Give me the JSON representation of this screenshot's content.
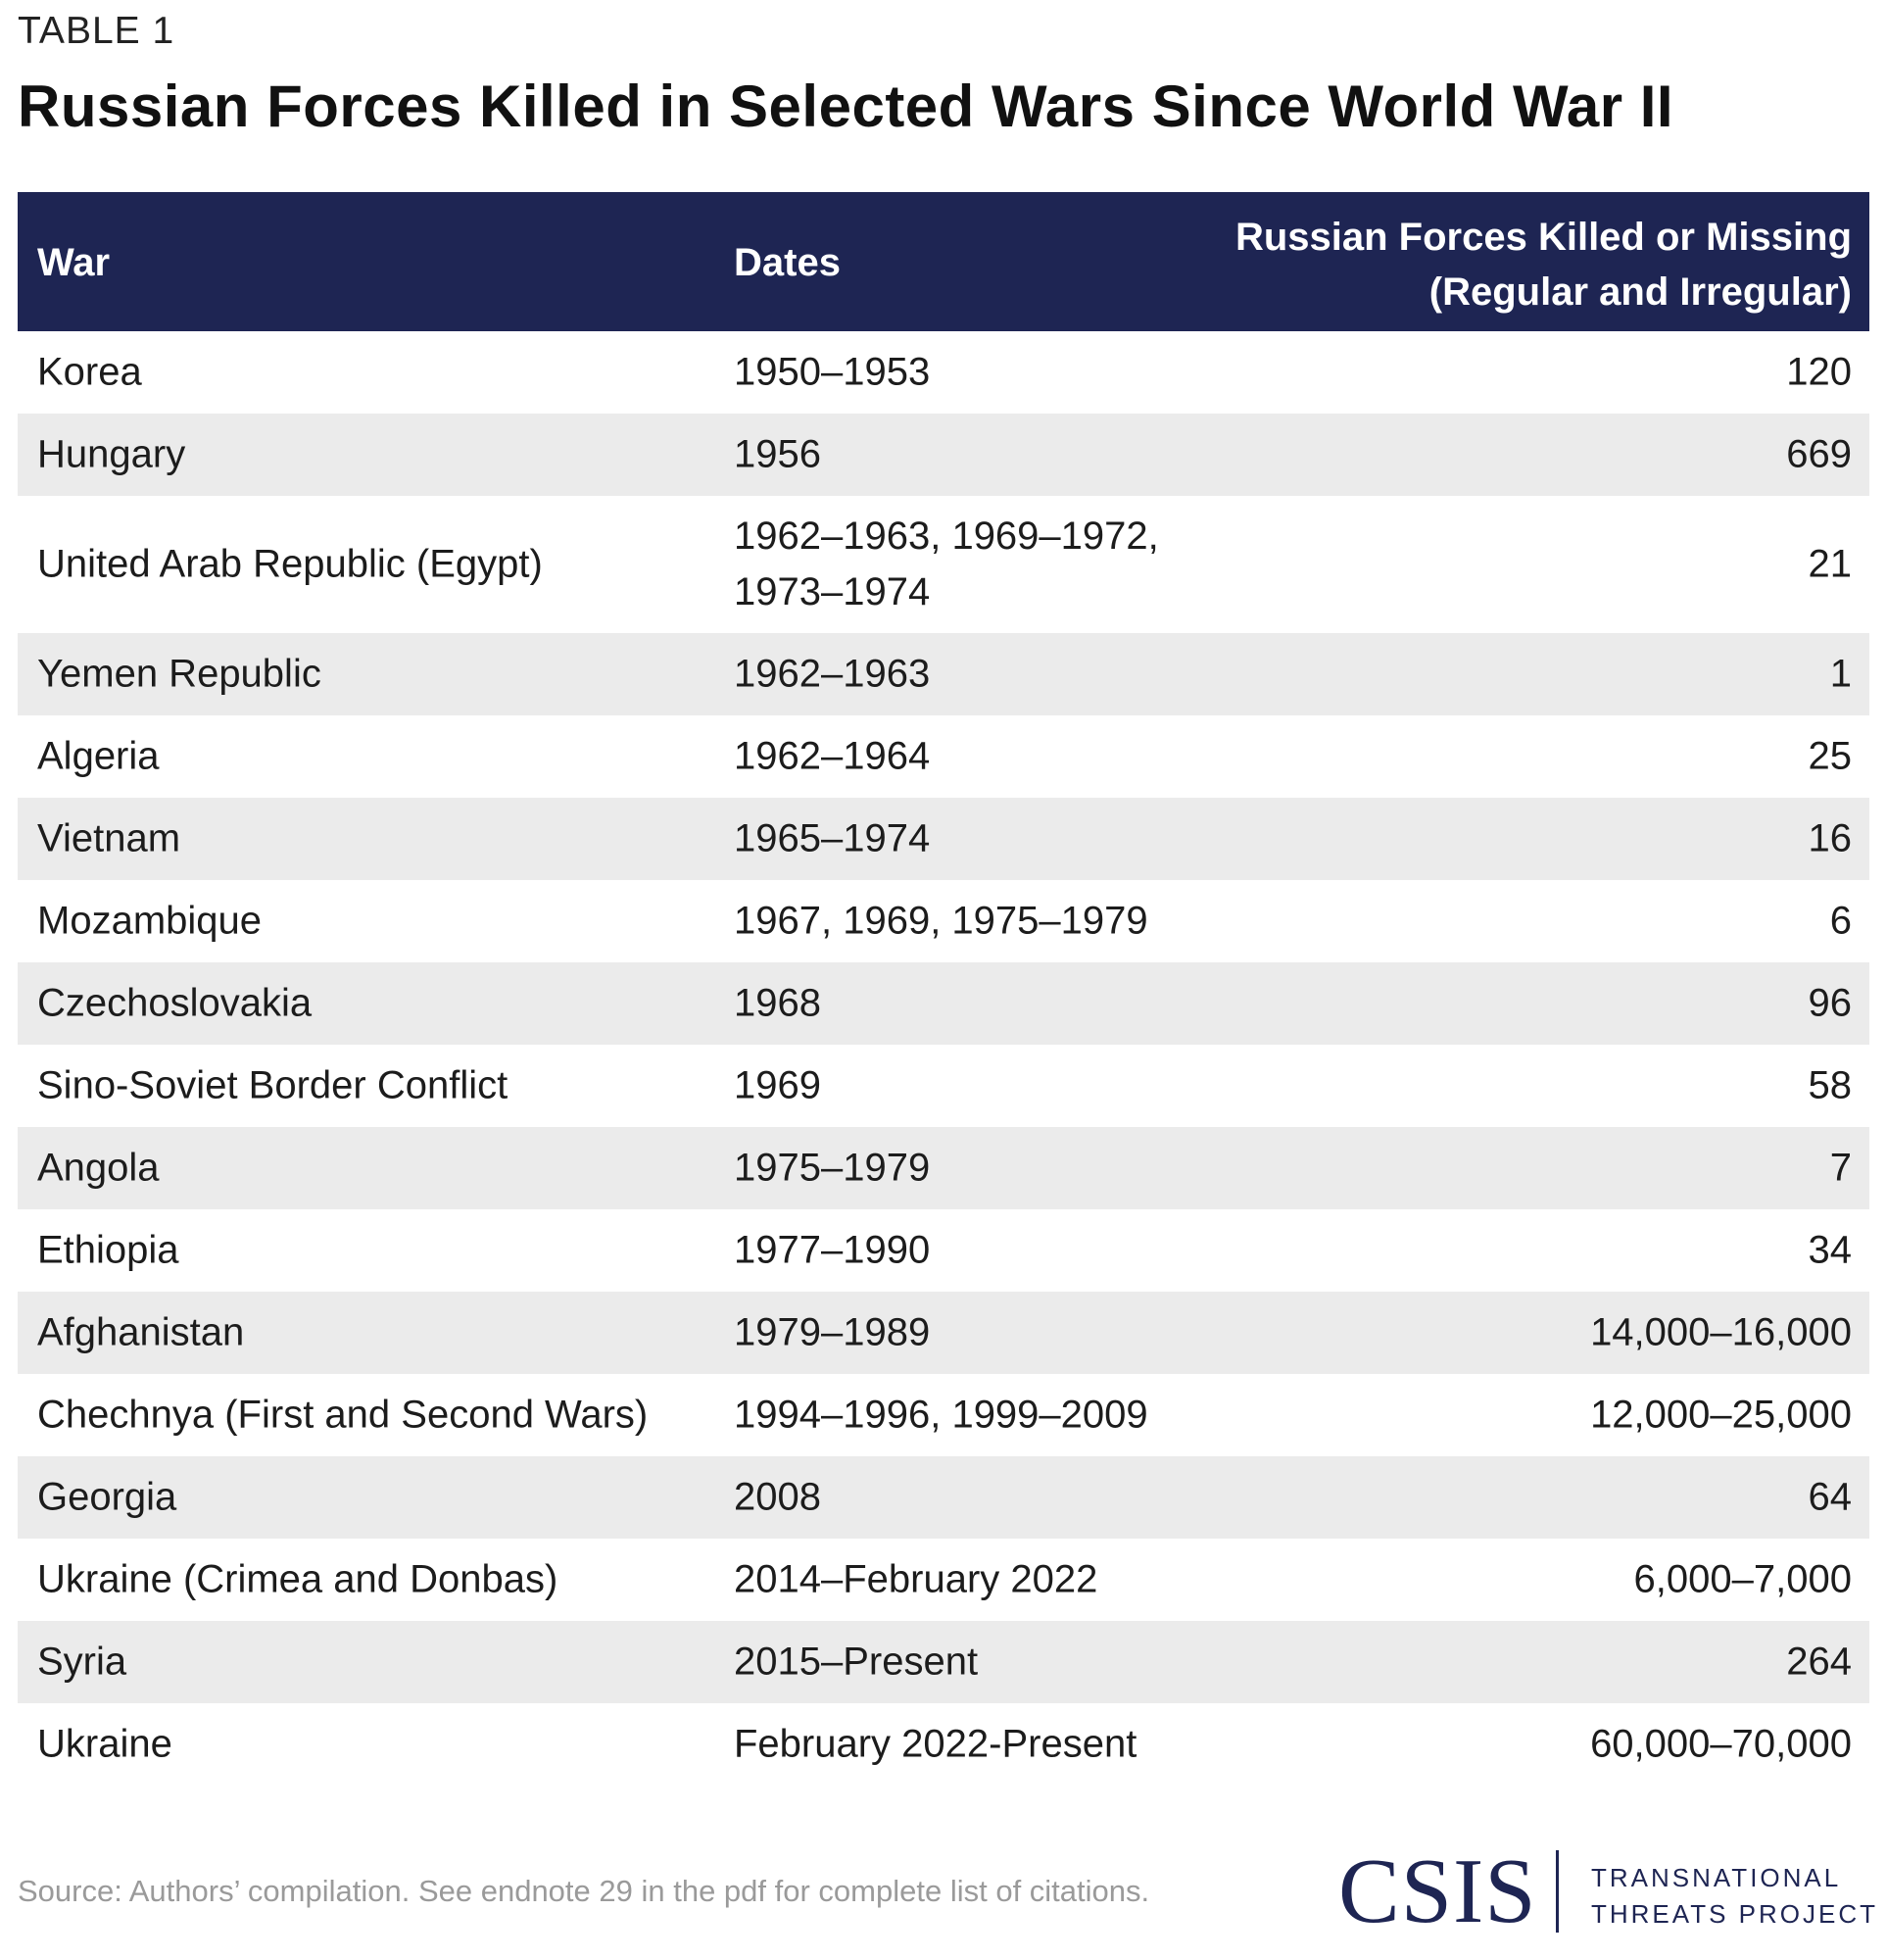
{
  "eyebrow": "TABLE 1",
  "title": "Russian Forces Killed in Selected Wars Since World War II",
  "table": {
    "headers": {
      "war": "War",
      "dates": "Dates",
      "killed_line1": "Russian Forces Killed or Missing",
      "killed_line2": "(Regular and Irregular)"
    },
    "rows": [
      {
        "war": "Korea",
        "dates": "1950–1953",
        "killed": "120"
      },
      {
        "war": "Hungary",
        "dates": "1956",
        "killed": "669"
      },
      {
        "war": "United Arab Republic (Egypt)",
        "dates": "1962–1963, 1969–1972,",
        "dates_line2": "1973–1974",
        "killed": "21"
      },
      {
        "war": "Yemen Republic",
        "dates": "1962–1963",
        "killed": "1"
      },
      {
        "war": "Algeria",
        "dates": "1962–1964",
        "killed": "25"
      },
      {
        "war": "Vietnam",
        "dates": "1965–1974",
        "killed": "16"
      },
      {
        "war": "Mozambique",
        "dates": "1967, 1969, 1975–1979",
        "killed": "6"
      },
      {
        "war": "Czechoslovakia",
        "dates": "1968",
        "killed": "96"
      },
      {
        "war": "Sino-Soviet Border Conflict",
        "dates": "1969",
        "killed": "58"
      },
      {
        "war": "Angola",
        "dates": "1975–1979",
        "killed": "7"
      },
      {
        "war": "Ethiopia",
        "dates": "1977–1990",
        "killed": "34"
      },
      {
        "war": "Afghanistan",
        "dates": "1979–1989",
        "killed": "14,000–16,000"
      },
      {
        "war": "Chechnya (First and Second Wars)",
        "dates": "1994–1996, 1999–2009",
        "killed": "12,000–25,000"
      },
      {
        "war": "Georgia",
        "dates": "2008",
        "killed": "64"
      },
      {
        "war": "Ukraine (Crimea and Donbas)",
        "dates": "2014–February 2022",
        "killed": "6,000–7,000"
      },
      {
        "war": "Syria",
        "dates": "2015–Present",
        "killed": "264"
      },
      {
        "war": "Ukraine",
        "dates": "February 2022-Present",
        "killed": "60,000–70,000"
      }
    ]
  },
  "source": "Source: Authors’ compilation. See endnote 29 in the pdf for complete list of citations.",
  "logo": {
    "mark": "CSIS",
    "line1": "TRANSNATIONAL",
    "line2": "THREATS PROJECT"
  },
  "colors": {
    "header_bg": "#1e2553",
    "stripe": "#ebebeb",
    "source_text": "#9a9a9a"
  }
}
